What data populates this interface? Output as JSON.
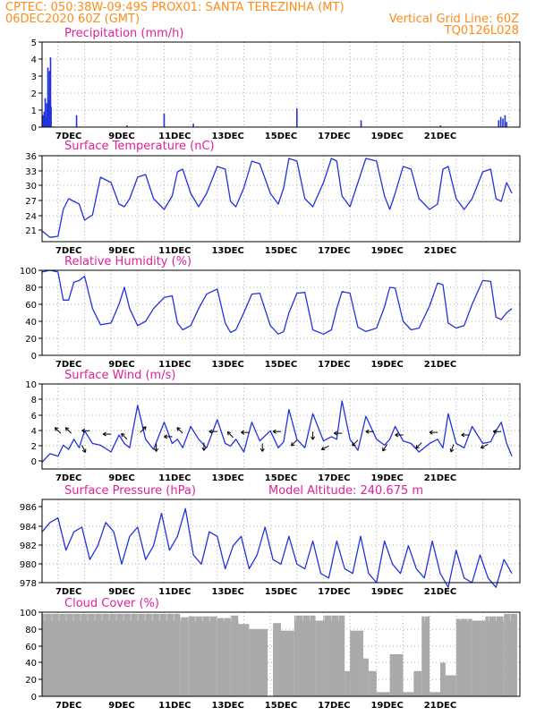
{
  "header": {
    "left_line1": "CPTEC:   050:38W-09:49S   PROX01: SANTA TEREZINHA (MT)",
    "left_line2": "06DEC2020 60Z (GMT)",
    "right_line2": "Vertical Grid Line: 60Z",
    "right_line3": "TQ0126L028"
  },
  "colors": {
    "header": "#ff8c1a",
    "title": "#e0209a",
    "series": "#2233dd",
    "cloud": "#aaaaaa"
  },
  "x_ticks": [
    "7DEC",
    "9DEC",
    "11DEC",
    "13DEC",
    "15DEC",
    "17DEC",
    "19DEC",
    "21DEC"
  ],
  "chart_data": [
    {
      "type": "bar",
      "title": "Precipitation (mm/h)",
      "ylim": [
        0,
        5
      ],
      "yticks": [
        "0",
        "1",
        "2",
        "3",
        "4",
        "5"
      ],
      "x_range": [
        "6DEC 06Z",
        "21DEC"
      ],
      "x": [
        0.04,
        0.06,
        0.08,
        0.1,
        0.12,
        0.14,
        0.16,
        0.18,
        0.2,
        0.22,
        0.24,
        0.26,
        0.28,
        0.3,
        0.32,
        0.34,
        1.3,
        3.2,
        4.6,
        5.7,
        9.6,
        12.02,
        15.01,
        17.2,
        17.28,
        17.36,
        17.44,
        17.5
      ],
      "values": [
        0.7,
        0.4,
        0.9,
        0.5,
        1.7,
        0.6,
        0.5,
        1.4,
        0.8,
        3.5,
        1.3,
        1.6,
        3.3,
        1.5,
        4.1,
        1.2,
        0.7,
        0.1,
        0.8,
        0.2,
        1.1,
        0.4,
        0.1,
        0.4,
        0.6,
        0.5,
        0.7,
        0.3
      ]
    },
    {
      "type": "line",
      "title": "Surface Temperature (nC)",
      "ylim": [
        20,
        36
      ],
      "yticks": [
        "21",
        "24",
        "27",
        "30",
        "33",
        "36"
      ],
      "x": [
        0.0,
        0.3,
        0.6,
        0.8,
        1.0,
        1.2,
        1.4,
        1.6,
        1.9,
        2.2,
        2.6,
        2.9,
        3.1,
        3.3,
        3.6,
        3.9,
        4.2,
        4.6,
        4.9,
        5.1,
        5.3,
        5.6,
        5.9,
        6.2,
        6.6,
        6.9,
        7.1,
        7.3,
        7.6,
        7.9,
        8.2,
        8.6,
        8.9,
        9.1,
        9.3,
        9.6,
        9.9,
        10.2,
        10.6,
        10.9,
        11.1,
        11.3,
        11.6,
        11.9,
        12.2,
        12.6,
        12.9,
        13.1,
        13.3,
        13.6,
        13.9,
        14.2,
        14.6,
        14.9,
        15.1,
        15.3,
        15.6,
        15.9,
        16.2,
        16.6,
        16.9,
        17.1,
        17.3,
        17.5,
        17.7
      ],
      "values": [
        22.0,
        20.8,
        21.0,
        26.0,
        28.0,
        27.5,
        27.0,
        24.0,
        25.0,
        32.0,
        31.0,
        27.0,
        26.5,
        28.0,
        32.0,
        32.5,
        28.0,
        26.0,
        28.5,
        33.0,
        33.5,
        29.0,
        26.5,
        29.0,
        34.0,
        33.5,
        27.5,
        26.5,
        30.0,
        35.0,
        34.5,
        29.0,
        27.0,
        30.0,
        35.5,
        35.0,
        28.0,
        26.5,
        31.0,
        35.5,
        35.0,
        28.5,
        26.5,
        31.0,
        35.5,
        35.0,
        28.5,
        26.0,
        29.0,
        34.0,
        33.5,
        28.0,
        26.0,
        27.0,
        33.5,
        34.0,
        28.0,
        26.0,
        28.0,
        33.0,
        33.5,
        28.0,
        27.5,
        31.0,
        29.0
      ]
    },
    {
      "type": "line",
      "title": "Relative Humidity (%)",
      "ylim": [
        0,
        100
      ],
      "yticks": [
        "0",
        "20",
        "40",
        "60",
        "80",
        "100"
      ],
      "x": [
        0.0,
        0.3,
        0.6,
        0.8,
        1.0,
        1.2,
        1.4,
        1.6,
        1.9,
        2.2,
        2.6,
        2.9,
        3.1,
        3.3,
        3.6,
        3.9,
        4.2,
        4.6,
        4.9,
        5.1,
        5.3,
        5.6,
        5.9,
        6.2,
        6.6,
        6.9,
        7.1,
        7.3,
        7.6,
        7.9,
        8.2,
        8.6,
        8.9,
        9.1,
        9.3,
        9.6,
        9.9,
        10.2,
        10.6,
        10.9,
        11.1,
        11.3,
        11.6,
        11.9,
        12.2,
        12.6,
        12.9,
        13.1,
        13.3,
        13.6,
        13.9,
        14.2,
        14.6,
        14.9,
        15.1,
        15.3,
        15.6,
        15.9,
        16.2,
        16.6,
        16.9,
        17.1,
        17.3,
        17.5,
        17.7
      ],
      "values": [
        98,
        100,
        98,
        65,
        65,
        86,
        88,
        93,
        55,
        36,
        38,
        60,
        80,
        55,
        35,
        40,
        55,
        68,
        70,
        38,
        30,
        35,
        55,
        72,
        78,
        38,
        27,
        30,
        50,
        72,
        73,
        35,
        25,
        28,
        50,
        73,
        74,
        30,
        25,
        30,
        55,
        75,
        73,
        33,
        28,
        32,
        57,
        80,
        79,
        40,
        30,
        32,
        58,
        85,
        83,
        38,
        32,
        35,
        60,
        88,
        87,
        45,
        42,
        50,
        55
      ]
    },
    {
      "type": "line",
      "title": "Surface Wind (m/s)",
      "ylim": [
        0,
        10
      ],
      "yticks": [
        "0",
        "2",
        "4",
        "6",
        "8",
        "10"
      ],
      "x": [
        0.0,
        0.3,
        0.6,
        0.8,
        1.0,
        1.2,
        1.4,
        1.6,
        1.9,
        2.2,
        2.6,
        2.9,
        3.1,
        3.3,
        3.6,
        3.9,
        4.2,
        4.6,
        4.9,
        5.1,
        5.3,
        5.6,
        5.9,
        6.2,
        6.6,
        6.9,
        7.1,
        7.3,
        7.6,
        7.9,
        8.2,
        8.6,
        8.9,
        9.1,
        9.3,
        9.6,
        9.9,
        10.2,
        10.6,
        10.9,
        11.1,
        11.3,
        11.6,
        11.9,
        12.2,
        12.6,
        12.9,
        13.1,
        13.3,
        13.6,
        13.9,
        14.2,
        14.6,
        14.9,
        15.1,
        15.3,
        15.6,
        15.9,
        16.2,
        16.6,
        16.9,
        17.1,
        17.3,
        17.5,
        17.7
      ],
      "values": [
        0.8,
        1.8,
        1.5,
        2.8,
        2.3,
        3.5,
        2.5,
        4.5,
        3.0,
        2.8,
        2.0,
        4.0,
        3.0,
        2.5,
        7.5,
        3.5,
        2.3,
        5.5,
        3.0,
        3.5,
        2.5,
        5.0,
        3.5,
        2.5,
        5.8,
        3.0,
        2.7,
        3.5,
        2.0,
        5.5,
        3.3,
        4.5,
        2.5,
        3.2,
        7.0,
        3.5,
        2.5,
        6.5,
        3.3,
        3.8,
        3.5,
        8.0,
        3.5,
        2.2,
        6.2,
        3.5,
        2.8,
        3.5,
        5.0,
        3.3,
        3.0,
        2.0,
        3.0,
        3.5,
        2.5,
        6.5,
        3.0,
        2.5,
        5.0,
        3.0,
        3.2,
        4.5,
        5.5,
        3.0,
        1.5
      ],
      "arrows": {
        "x": [
          0.7,
          1.1,
          1.5,
          1.8,
          2.6,
          3.2,
          3.7,
          4.3,
          4.9,
          5.3,
          6.1,
          6.6,
          7.2,
          7.8,
          8.3,
          9.0,
          9.6,
          10.2,
          10.8,
          11.3,
          11.9,
          12.5,
          13.0,
          13.6,
          14.3,
          14.9,
          15.5,
          16.1,
          16.8,
          17.3
        ],
        "y": [
          4.2,
          4.2,
          2.8,
          4.5,
          4.1,
          3.5,
          4.3,
          3.0,
          3.8,
          4.2,
          3.1,
          4.4,
          3.7,
          4.3,
          3.0,
          4.4,
          3.4,
          4.4,
          2.7,
          4.2,
          3.4,
          4.4,
          2.9,
          4.0,
          3.1,
          4.3,
          2.9,
          4.0,
          2.9,
          4.4
        ],
        "u": [
          -1,
          -1,
          1,
          -1,
          -1,
          -2,
          1,
          0,
          -1,
          -1,
          0,
          -1,
          -1,
          -1,
          0,
          -1,
          -2,
          0,
          -2,
          -1,
          -2,
          -1,
          -2,
          -1,
          -2,
          -1,
          -1,
          -1,
          -2,
          -1
        ],
        "v": [
          1,
          1,
          -2,
          0,
          0,
          2,
          1,
          -3,
          0,
          1,
          -2,
          0,
          1,
          0,
          -3,
          0,
          -2,
          -2,
          -1,
          0,
          -2,
          0,
          -3,
          0,
          -2,
          0,
          -3,
          0,
          -1,
          0
        ]
      }
    },
    {
      "type": "line",
      "title": "Surface Pressure (hPa)",
      "annotation": "Model Altitude: 240.675 m",
      "ylim": [
        978,
        987
      ],
      "yticks": [
        "978",
        "980",
        "982",
        "984",
        "986"
      ],
      "x": [
        0.0,
        0.3,
        0.6,
        0.9,
        1.2,
        1.5,
        1.8,
        2.1,
        2.4,
        2.7,
        3.0,
        3.3,
        3.6,
        3.9,
        4.2,
        4.5,
        4.8,
        5.1,
        5.4,
        5.7,
        6.0,
        6.3,
        6.6,
        6.9,
        7.2,
        7.5,
        7.8,
        8.1,
        8.4,
        8.7,
        9.0,
        9.3,
        9.6,
        9.9,
        10.2,
        10.5,
        10.8,
        11.1,
        11.4,
        11.7,
        12.0,
        12.3,
        12.6,
        12.9,
        13.2,
        13.5,
        13.8,
        14.1,
        14.4,
        14.7,
        15.0,
        15.3,
        15.6,
        15.9,
        16.2,
        16.5,
        16.8,
        17.1,
        17.4,
        17.7
      ],
      "values": [
        983.5,
        984.5,
        985.0,
        981.5,
        983.5,
        984.0,
        980.5,
        982.0,
        984.5,
        983.5,
        980.0,
        983.0,
        984.0,
        980.5,
        982.0,
        985.5,
        981.5,
        983.0,
        986.0,
        981.0,
        980.0,
        983.5,
        983.0,
        979.5,
        982.0,
        983.0,
        979.5,
        981.0,
        984.0,
        980.5,
        980.0,
        983.0,
        980.0,
        979.5,
        982.5,
        979.0,
        978.5,
        982.5,
        979.5,
        979.0,
        983.0,
        979.0,
        978.0,
        982.5,
        980.0,
        979.0,
        982.0,
        979.5,
        978.5,
        982.5,
        979.0,
        977.5,
        981.5,
        978.5,
        978.0,
        981.0,
        978.5,
        977.5,
        980.5,
        979.0
      ]
    },
    {
      "type": "bar",
      "title": "Cloud Cover (%)",
      "ylim": [
        0,
        100
      ],
      "yticks": [
        "0",
        "20",
        "40",
        "60",
        "80",
        "100"
      ],
      "segments": [
        [
          0,
          5.2,
          98
        ],
        [
          5.2,
          5.5,
          94
        ],
        [
          5.5,
          6.6,
          95
        ],
        [
          6.6,
          7.1,
          93
        ],
        [
          7.1,
          7.4,
          96
        ],
        [
          7.4,
          7.8,
          86
        ],
        [
          7.8,
          8.5,
          80
        ],
        [
          8.5,
          8.7,
          0
        ],
        [
          8.7,
          9.0,
          87
        ],
        [
          9.0,
          9.5,
          78
        ],
        [
          9.5,
          10.3,
          96
        ],
        [
          10.3,
          10.6,
          90
        ],
        [
          10.6,
          11.4,
          96
        ],
        [
          11.4,
          11.6,
          30
        ],
        [
          11.6,
          12.1,
          78
        ],
        [
          12.1,
          12.3,
          45
        ],
        [
          12.3,
          12.6,
          30
        ],
        [
          12.6,
          13.1,
          5
        ],
        [
          13.1,
          13.6,
          50
        ],
        [
          13.6,
          14.0,
          5
        ],
        [
          14.0,
          14.3,
          30
        ],
        [
          14.3,
          14.6,
          95
        ],
        [
          14.6,
          15.0,
          5
        ],
        [
          15.0,
          15.2,
          40
        ],
        [
          15.2,
          15.6,
          25
        ],
        [
          15.6,
          16.2,
          92
        ],
        [
          16.2,
          16.7,
          90
        ],
        [
          16.7,
          17.4,
          95
        ],
        [
          17.4,
          17.9,
          98
        ]
      ]
    }
  ]
}
